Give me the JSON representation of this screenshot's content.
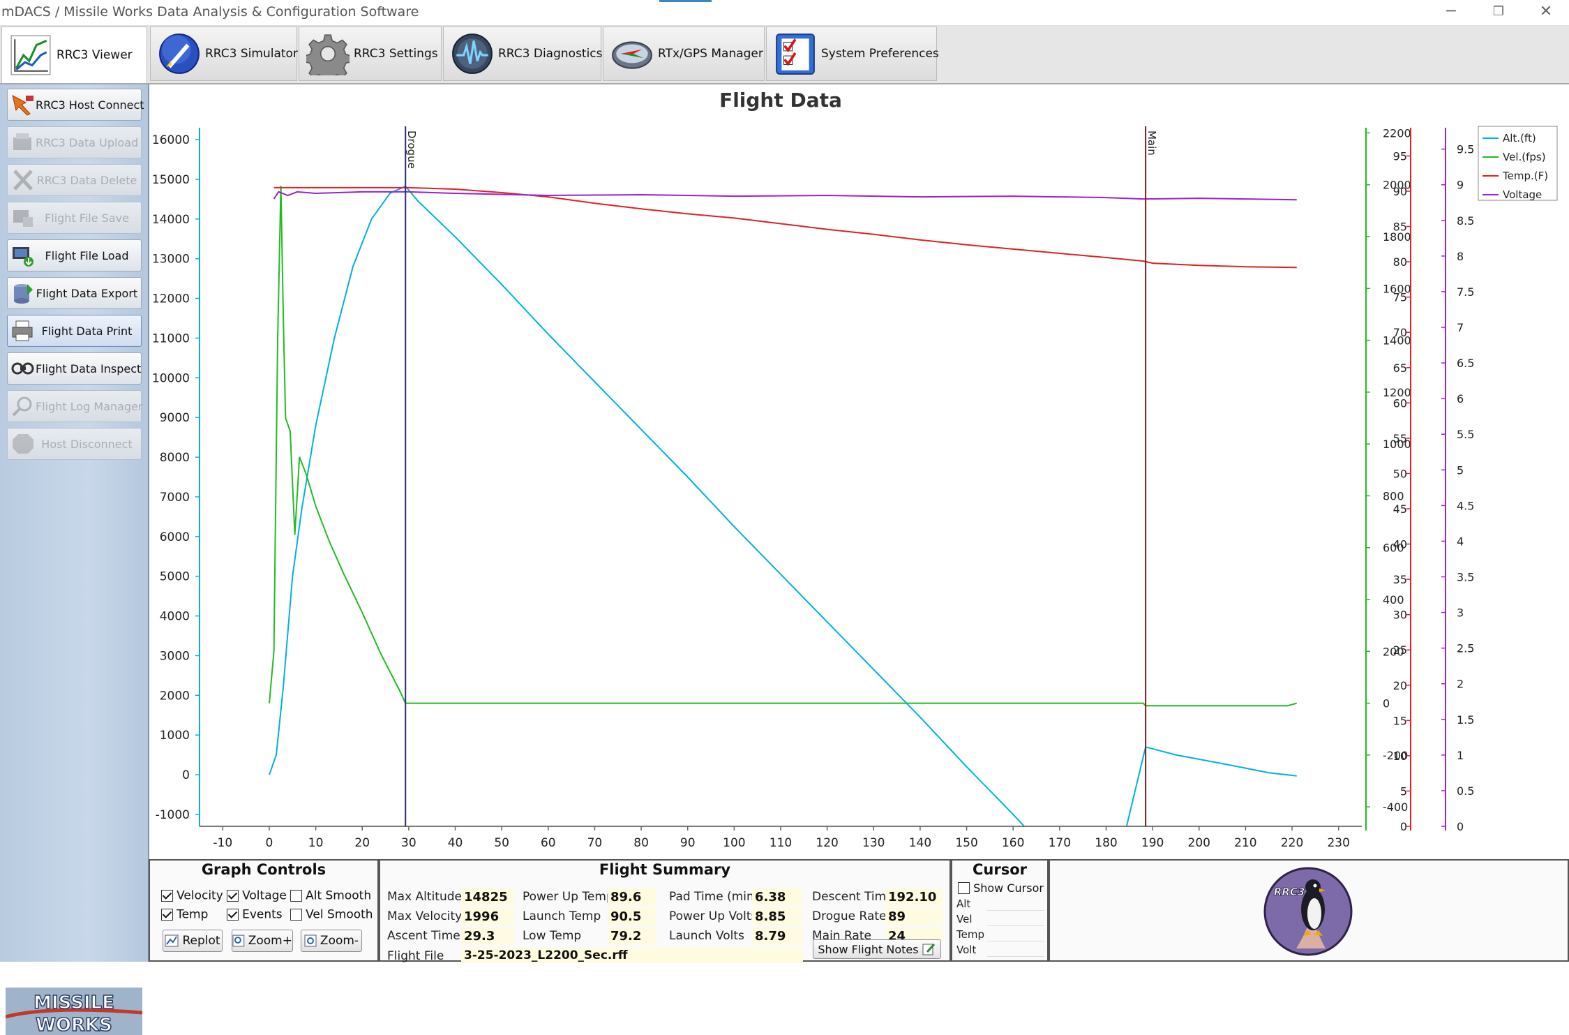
{
  "window": {
    "title": "mDACS / Missile Works Data Analysis & Configuration Software",
    "controls": [
      "─",
      "❐",
      "✕"
    ]
  },
  "tabs": [
    {
      "label": "RRC3 Viewer",
      "icon": "chart-icon",
      "active": true
    },
    {
      "label": "RRC3 Simulator",
      "icon": "rocket-icon",
      "active": false
    },
    {
      "label": "RRC3 Settings",
      "icon": "gear-icon",
      "active": false
    },
    {
      "label": "RRC3 Diagnostics",
      "icon": "waveform-icon",
      "active": false
    },
    {
      "label": "RTx/GPS Manager",
      "icon": "compass-icon",
      "active": false
    },
    {
      "label": "System Preferences",
      "icon": "checklist-icon",
      "active": false
    }
  ],
  "sidebar": {
    "items": [
      {
        "label": "RRC3 Host Connect",
        "icon": "connect-icon",
        "enabled": true
      },
      {
        "label": "RRC3 Data Upload",
        "icon": "upload-icon",
        "enabled": false
      },
      {
        "label": "RRC3 Data Delete",
        "icon": "delete-icon",
        "enabled": false
      },
      {
        "label": "Flight File Save",
        "icon": "save-icon",
        "enabled": false
      },
      {
        "label": "Flight File Load",
        "icon": "load-icon",
        "enabled": true
      },
      {
        "label": "Flight Data Export",
        "icon": "export-icon",
        "enabled": true
      },
      {
        "label": "Flight Data Print",
        "icon": "print-icon",
        "enabled": true
      },
      {
        "label": "Flight Data Inspect",
        "icon": "inspect-icon",
        "enabled": true
      },
      {
        "label": "Flight Log Manager",
        "icon": "log-icon",
        "enabled": false
      },
      {
        "label": "Host Disconnect",
        "icon": "stop-icon",
        "enabled": false
      }
    ],
    "logo_text": [
      "MISSILE",
      "WORKS"
    ]
  },
  "chart_data": {
    "type": "line",
    "title": "Flight Data",
    "xlim": [
      -15,
      235
    ],
    "x_ticks": [
      -10,
      0,
      10,
      20,
      30,
      40,
      50,
      60,
      70,
      80,
      90,
      100,
      110,
      120,
      130,
      140,
      150,
      160,
      170,
      180,
      190,
      200,
      210,
      220,
      230
    ],
    "axes": {
      "altitude": {
        "range": [
          -1300,
          16300
        ],
        "ticks": [
          -1000,
          0,
          1000,
          2000,
          3000,
          4000,
          5000,
          6000,
          7000,
          8000,
          9000,
          10000,
          11000,
          12000,
          13000,
          14000,
          15000,
          16000
        ],
        "color": "#00b0e0"
      },
      "velocity": {
        "range": [
          -475,
          2220
        ],
        "ticks": [
          -400,
          -200,
          0,
          200,
          400,
          600,
          800,
          1000,
          1200,
          1400,
          1600,
          1800,
          2000,
          2200
        ],
        "color": "#22bb22"
      },
      "temperature": {
        "range": [
          0,
          99
        ],
        "ticks": [
          0,
          5,
          10,
          15,
          20,
          25,
          30,
          35,
          40,
          45,
          50,
          55,
          60,
          65,
          70,
          75,
          80,
          85,
          90,
          95
        ],
        "color": "#dd2222"
      },
      "voltage": {
        "range": [
          0,
          9.8
        ],
        "ticks": [
          0,
          0.5,
          1,
          1.5,
          2,
          2.5,
          3,
          3.5,
          4,
          4.5,
          5,
          5.5,
          6,
          6.5,
          7,
          7.5,
          8,
          8.5,
          9,
          9.5
        ],
        "color": "#9922cc"
      }
    },
    "events": [
      {
        "name": "Drogue",
        "x": 29.3,
        "color": "#2a2a7a"
      },
      {
        "name": "Main",
        "x": 188.5,
        "color": "#7a1a1a"
      }
    ],
    "legend_position": "top-right",
    "series": [
      {
        "name": "Alt.(ft)",
        "axis": "altitude",
        "color": "#00b0e0",
        "x": [
          0,
          1.5,
          3,
          5,
          7,
          10,
          14,
          18,
          22,
          26,
          29.3,
          32,
          40,
          50,
          60,
          70,
          80,
          90,
          100,
          110,
          120,
          130,
          140,
          150,
          160,
          170,
          180,
          188.5,
          195,
          205,
          215,
          221
        ],
        "y": [
          0,
          500,
          2200,
          5000,
          6700,
          8800,
          11000,
          12800,
          14000,
          14650,
          14825,
          14450,
          13550,
          12350,
          11100,
          9900,
          8700,
          7500,
          6250,
          5050,
          3850,
          2650,
          1450,
          200,
          -1000,
          -2250,
          -3450,
          700,
          500,
          280,
          50,
          -30
        ]
      },
      {
        "name": "Vel.(fps)",
        "axis": "velocity",
        "color": "#22bb22",
        "x": [
          0,
          1,
          1.8,
          2.5,
          3,
          3.5,
          4.5,
          5.5,
          6.5,
          8,
          10,
          13,
          16,
          20,
          24,
          28,
          29.3,
          188,
          188.5,
          219,
          221
        ],
        "y": [
          0,
          200,
          1400,
          1996,
          1500,
          1100,
          1050,
          650,
          950,
          880,
          760,
          620,
          500,
          350,
          190,
          50,
          0,
          0,
          -10,
          -10,
          0
        ]
      },
      {
        "name": "Temp.(F)",
        "axis": "temperature",
        "color": "#dd2222",
        "x": [
          1,
          3,
          10,
          20,
          30,
          40,
          50,
          60,
          70,
          80,
          90,
          100,
          110,
          120,
          130,
          140,
          150,
          160,
          170,
          180,
          188,
          190,
          200,
          210,
          221
        ],
        "y": [
          90.5,
          90.5,
          90.5,
          90.5,
          90.5,
          90.3,
          89.8,
          89.2,
          88.3,
          87.5,
          86.8,
          86.2,
          85.4,
          84.6,
          83.9,
          83.1,
          82.4,
          81.8,
          81.2,
          80.6,
          80.1,
          79.8,
          79.5,
          79.3,
          79.2
        ]
      },
      {
        "name": "Voltage",
        "axis": "voltage",
        "color": "#9922cc",
        "x": [
          1,
          2,
          4,
          6,
          10,
          20,
          29,
          30,
          40,
          60,
          80,
          100,
          120,
          140,
          160,
          180,
          188,
          200,
          221
        ],
        "y": [
          8.8,
          8.9,
          8.85,
          8.9,
          8.88,
          8.9,
          8.9,
          8.9,
          8.88,
          8.85,
          8.86,
          8.84,
          8.85,
          8.83,
          8.84,
          8.82,
          8.8,
          8.81,
          8.79
        ]
      }
    ]
  },
  "graph_controls": {
    "title": "Graph Controls",
    "checkboxes": [
      {
        "label": "Velocity",
        "checked": true
      },
      {
        "label": "Voltage",
        "checked": true
      },
      {
        "label": "Alt Smooth",
        "checked": false
      },
      {
        "label": "Temp",
        "checked": true
      },
      {
        "label": "Events",
        "checked": true
      },
      {
        "label": "Vel Smooth",
        "checked": false
      }
    ],
    "buttons": [
      "Replot",
      "Zoom+",
      "Zoom-"
    ]
  },
  "flight_summary": {
    "title": "Flight Summary",
    "max_altitude": {
      "label": "Max Altitude",
      "value": "14825"
    },
    "max_velocity": {
      "label": "Max Velocity",
      "value": "1996"
    },
    "ascent_time": {
      "label": "Ascent Time",
      "value": "29.3"
    },
    "power_up_temp": {
      "label": "Power Up Temp",
      "value": "89.6"
    },
    "launch_temp": {
      "label": "Launch Temp",
      "value": "90.5"
    },
    "low_temp": {
      "label": "Low Temp",
      "value": "79.2"
    },
    "pad_time": {
      "label": "Pad Time (min)",
      "value": "6.38"
    },
    "power_up_volts": {
      "label": "Power Up Volts",
      "value": "8.85"
    },
    "launch_volts": {
      "label": "Launch Volts",
      "value": "8.79"
    },
    "descent_time": {
      "label": "Descent Time",
      "value": "192.10"
    },
    "drogue_rate": {
      "label": "Drogue Rate",
      "value": "89"
    },
    "main_rate": {
      "label": "Main Rate",
      "value": "24"
    },
    "flight_file": {
      "label": "Flight File",
      "value": "3-25-2023_L2200_Sec.rff"
    },
    "notes_button": "Show Flight Notes"
  },
  "cursor": {
    "title": "Cursor",
    "show_cursor": {
      "label": "Show Cursor",
      "checked": false
    },
    "fields": [
      "Alt",
      "Vel",
      "Temp",
      "Volt"
    ]
  },
  "badge": {
    "text": "RRC3"
  }
}
